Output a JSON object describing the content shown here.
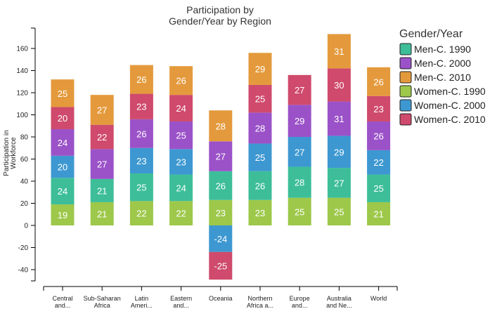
{
  "chart_data": {
    "type": "bar",
    "stacked": true,
    "title": [
      "Participation by",
      "Gender/Year by Region"
    ],
    "ylabel": [
      "Participation in",
      "Workforce"
    ],
    "xlabel": "",
    "ylim": [
      -50,
      180
    ],
    "yticks": [
      160,
      140,
      120,
      100,
      80,
      60,
      40,
      20,
      0,
      -20,
      -40
    ],
    "grid": false,
    "legend_position": "right",
    "legend_title": "Gender/Year",
    "categories": [
      [
        "Central",
        "and..."
      ],
      [
        "Sub-Saharan",
        "Africa"
      ],
      [
        "Latin",
        "Ameri..."
      ],
      [
        "Eastern",
        "and..."
      ],
      [
        "Oceania"
      ],
      [
        "Northern",
        "Africa a..."
      ],
      [
        "Europe",
        "and..."
      ],
      [
        "Australia",
        "and Ne..."
      ],
      [
        "World"
      ]
    ],
    "legend": [
      {
        "name": "Men-C. 1990",
        "color": "#3dbe99"
      },
      {
        "name": "Men-C. 2000",
        "color": "#9b52c8"
      },
      {
        "name": "Men-C. 2010",
        "color": "#e49a3c"
      },
      {
        "name": "Women-C. 1990",
        "color": "#9dc84a"
      },
      {
        "name": "Women-C. 2000",
        "color": "#3d98d1"
      },
      {
        "name": "Women-C. 2010",
        "color": "#cf4a6c"
      }
    ],
    "series": [
      {
        "name": "Women-C. 1990",
        "color": "#9dc84a",
        "values": [
          19,
          21,
          22,
          22,
          23,
          23,
          25,
          25,
          21
        ]
      },
      {
        "name": "Men-C. 1990",
        "color": "#3dbe99",
        "values": [
          24,
          21,
          25,
          24,
          26,
          26,
          28,
          27,
          25
        ]
      },
      {
        "name": "Women-C. 2000",
        "color": "#3d98d1",
        "values": [
          20,
          0,
          23,
          23,
          -24,
          25,
          27,
          29,
          22
        ]
      },
      {
        "name": "Men-C. 2000",
        "color": "#9b52c8",
        "values": [
          24,
          27,
          26,
          25,
          27,
          28,
          29,
          31,
          26
        ]
      },
      {
        "name": "Women-C. 2010",
        "color": "#cf4a6c",
        "values": [
          20,
          22,
          23,
          24,
          -25,
          25,
          27,
          30,
          23
        ]
      },
      {
        "name": "Men-C. 2010",
        "color": "#e49a3c",
        "values": [
          25,
          27,
          26,
          26,
          28,
          29,
          0,
          31,
          26
        ]
      }
    ]
  }
}
